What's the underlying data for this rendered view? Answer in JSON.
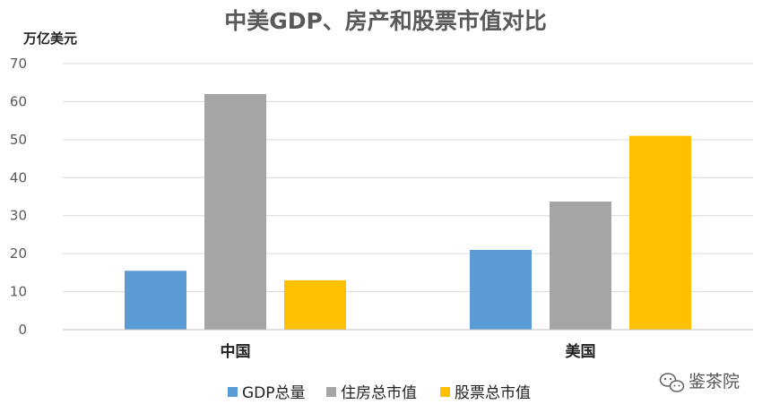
{
  "chart_data": {
    "type": "bar",
    "title": "中美GDP、房产和股票市值对比",
    "ylabel": "万亿美元",
    "xlabel": "",
    "categories": [
      "中国",
      "美国"
    ],
    "series": [
      {
        "name": "GDP总量",
        "color": "#5b9bd5",
        "values": [
          15.5,
          21
        ]
      },
      {
        "name": "住房总市值",
        "color": "#a5a5a5",
        "values": [
          62,
          33.7
        ]
      },
      {
        "name": "股票总市值",
        "color": "#ffc000",
        "values": [
          13,
          51
        ]
      }
    ],
    "ylim": [
      0,
      70
    ],
    "yticks": [
      0,
      10,
      20,
      30,
      40,
      50,
      60,
      70
    ],
    "grid": true,
    "legend_position": "bottom"
  },
  "watermark": {
    "text": "鉴茶院",
    "icon": "wechat-icon"
  }
}
